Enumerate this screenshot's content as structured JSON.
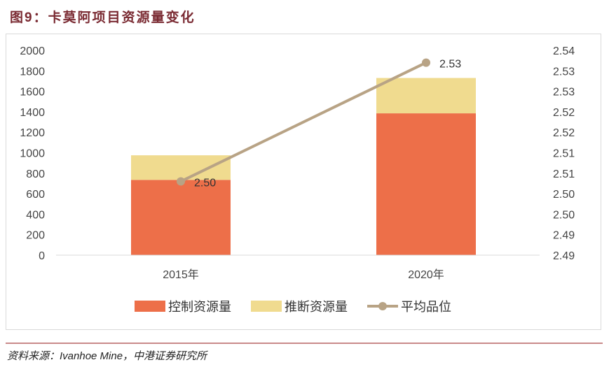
{
  "title": "图9：卡莫阿项目资源量变化",
  "source": "资料来源：Ivanhoe Mine，中港证券研究所",
  "chart_data": {
    "type": "bar",
    "title": "图9：卡莫阿项目资源量变化",
    "categories": [
      "2015年",
      "2020年"
    ],
    "series": [
      {
        "name": "控制资源量",
        "type": "bar",
        "stack": "a",
        "color": "#ed6f49",
        "values": [
          735,
          1385
        ]
      },
      {
        "name": "推断资源量",
        "type": "bar",
        "stack": "a",
        "color": "#f0db8f",
        "values": [
          240,
          345
        ]
      },
      {
        "name": "平均品位",
        "type": "line",
        "axis": "right",
        "color": "#b8a385",
        "values": [
          2.503,
          2.532
        ],
        "labels": [
          "2.50",
          "2.53"
        ]
      }
    ],
    "ylim": [
      0,
      2000
    ],
    "yticks": [
      "0",
      "200",
      "400",
      "600",
      "800",
      "1000",
      "1200",
      "1400",
      "1600",
      "1800",
      "2000"
    ],
    "y2lim": [
      2.485,
      2.535
    ],
    "y2ticks": [
      "2.49",
      "2.49",
      "2.50",
      "2.50",
      "2.51",
      "2.51",
      "2.52",
      "2.52",
      "2.53",
      "2.53",
      "2.54"
    ],
    "legend": "bottom"
  }
}
